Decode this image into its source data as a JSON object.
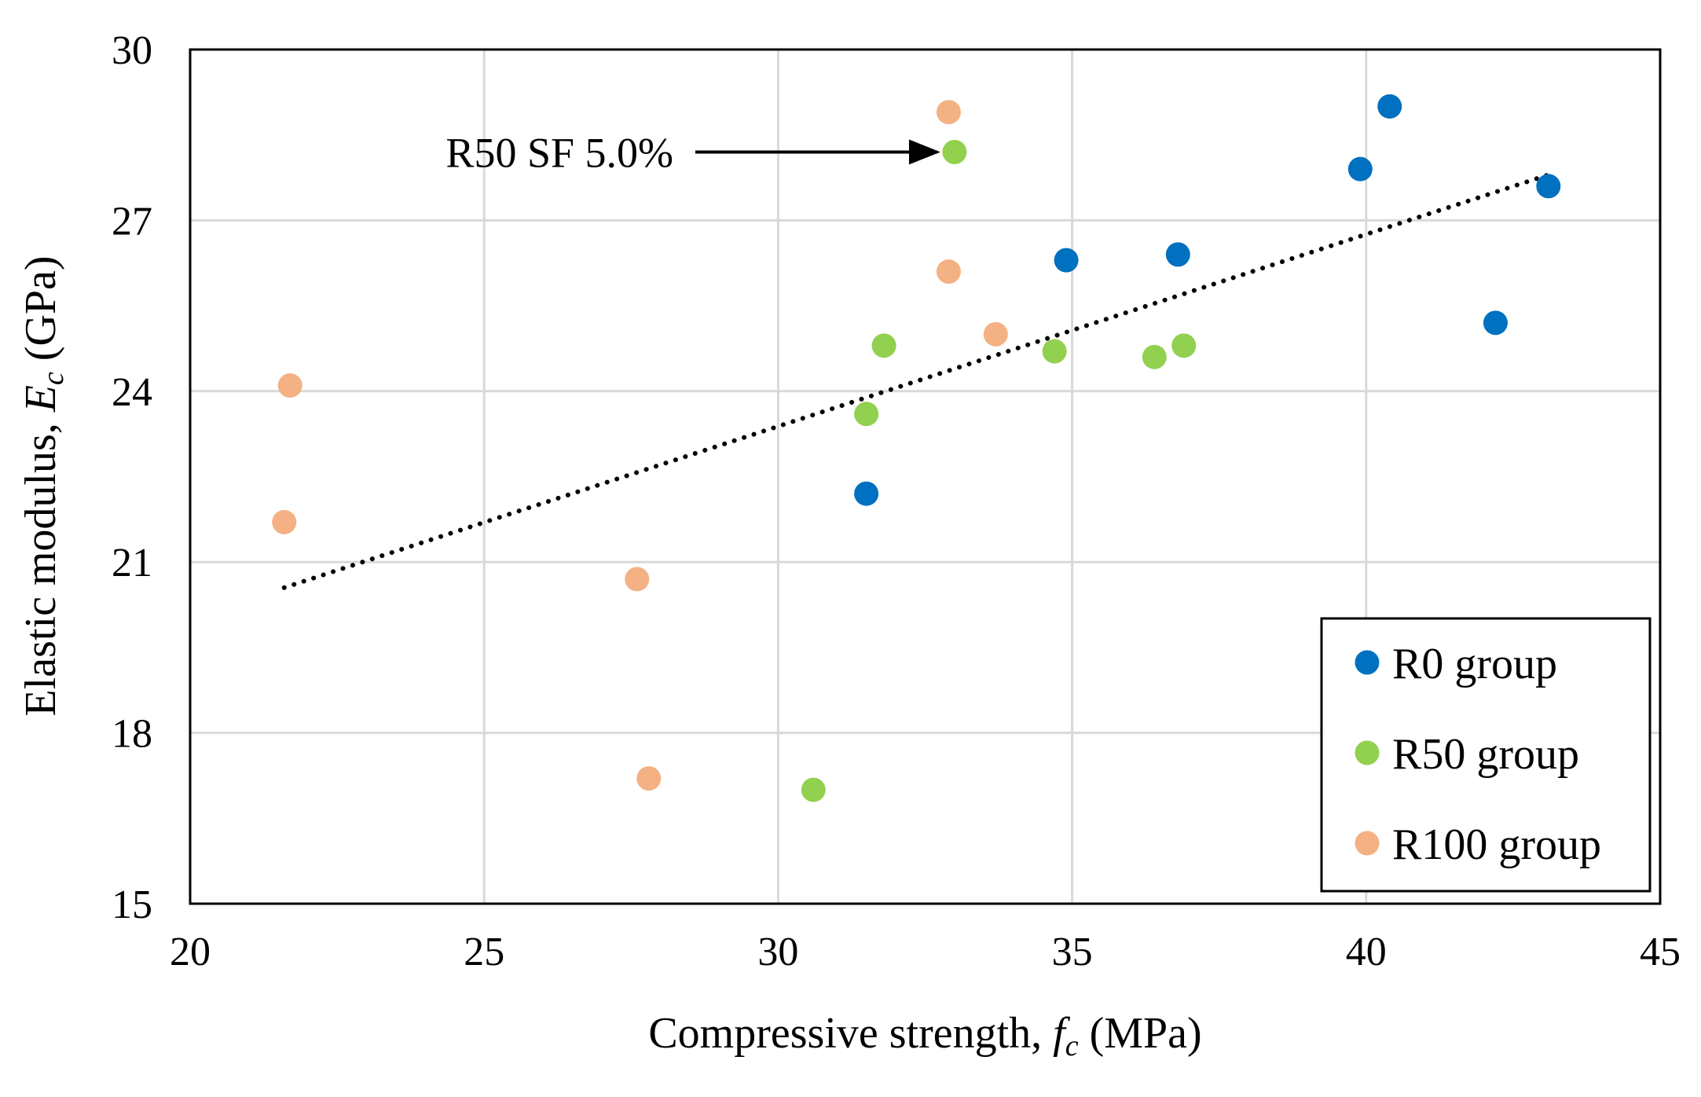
{
  "chart_data": {
    "type": "scatter",
    "xlabel": {
      "prefix": "Compressive strength, ",
      "symbol": "f",
      "subscript": "c",
      "suffix": " (MPa)"
    },
    "ylabel": {
      "prefix": "Elastic modulus, ",
      "symbol": "E",
      "subscript": "c",
      "suffix": " (GPa)"
    },
    "xlim": [
      20,
      45
    ],
    "ylim": [
      15,
      30
    ],
    "x_ticks": [
      20,
      25,
      30,
      35,
      40,
      45
    ],
    "y_ticks": [
      15,
      18,
      21,
      24,
      27,
      30
    ],
    "grid": true,
    "legend_position": "bottom-right",
    "series": [
      {
        "name": "R0 group",
        "color": "#0070C0",
        "points": [
          [
            31.5,
            22.2
          ],
          [
            34.9,
            26.3
          ],
          [
            36.8,
            26.4
          ],
          [
            39.9,
            27.9
          ],
          [
            40.4,
            29.0
          ],
          [
            42.2,
            25.2
          ],
          [
            43.1,
            27.6
          ]
        ]
      },
      {
        "name": "R50 group",
        "color": "#92D050",
        "points": [
          [
            30.6,
            17.0
          ],
          [
            31.5,
            23.6
          ],
          [
            31.8,
            24.8
          ],
          [
            33.0,
            28.2
          ],
          [
            34.7,
            24.7
          ],
          [
            36.4,
            24.6
          ],
          [
            36.9,
            24.8
          ]
        ]
      },
      {
        "name": "R100 group",
        "color": "#F4B183",
        "points": [
          [
            21.6,
            21.7
          ],
          [
            21.7,
            24.1
          ],
          [
            27.6,
            20.7
          ],
          [
            27.8,
            17.2
          ],
          [
            32.9,
            28.9
          ],
          [
            32.9,
            26.1
          ],
          [
            33.7,
            25.0
          ]
        ]
      }
    ],
    "trendline": {
      "style": "dotted",
      "color": "#000000",
      "x": [
        21.6,
        43.1
      ],
      "y": [
        20.55,
        27.8
      ]
    },
    "annotation": {
      "text": "R50 SF 5.0%",
      "target": [
        33.0,
        28.2
      ]
    }
  }
}
